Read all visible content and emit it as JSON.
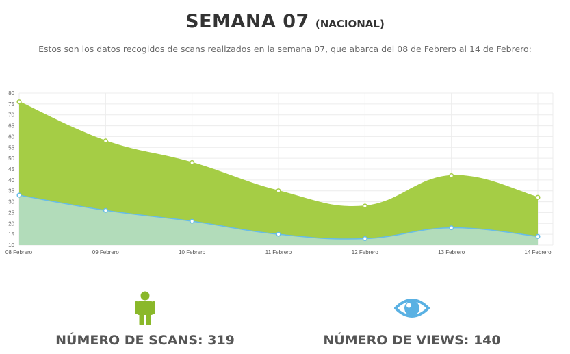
{
  "header": {
    "title": "SEMANA 07",
    "title_suffix": "(NACIONAL)",
    "description": "Estos son los datos recogidos de scans realizados en la semana 07, que abarca del 08 de Febrero al 14 de Febrero:"
  },
  "chart_data": {
    "type": "area",
    "categories": [
      "08 Febrero",
      "09 Febrero",
      "10 Febrero",
      "11 Febrero",
      "12 Febrero",
      "13 Febrero",
      "14 Febrero"
    ],
    "series": [
      {
        "values": [
          76,
          58,
          48,
          35,
          28,
          42,
          32
        ],
        "color": "#a5cd45",
        "fill": "#a5cd45"
      },
      {
        "values": [
          33,
          26,
          21,
          15,
          13,
          18,
          14
        ],
        "color": "#67bce8",
        "fill": "#b2dcba"
      }
    ],
    "ylim": [
      10,
      80
    ],
    "yticks": [
      "10",
      "15",
      "20",
      "25",
      "30",
      "35",
      "40",
      "45",
      "50",
      "55",
      "60",
      "65",
      "70",
      "75",
      "80"
    ],
    "grid": true
  },
  "stats": {
    "scans_label": "NÚMERO DE SCANS: 319",
    "views_label": "NÚMERO DE VIEWS: 140",
    "scans_icon": "person-icon",
    "views_icon": "eye-icon",
    "scans_color": "#8ab82a",
    "views_color": "#5ab1e3"
  }
}
